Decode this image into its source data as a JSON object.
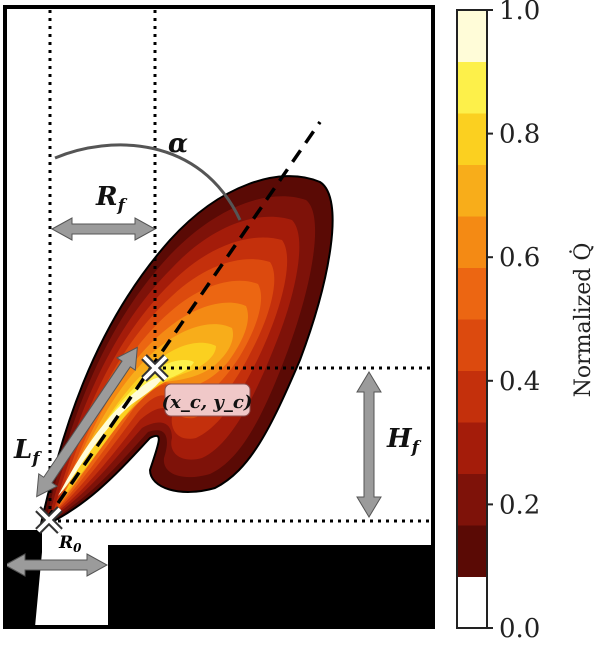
{
  "labels": {
    "alpha": "α",
    "rf_main": "R",
    "rf_sub": "f",
    "lf_main": "L",
    "lf_sub": "f",
    "hf_main": "H",
    "hf_sub": "f",
    "r0_main": "R",
    "r0_sub": "0",
    "xcyc": "(x_c, y_c)"
  },
  "colorbar": {
    "title": "Normalized Q̇",
    "ticks": [
      "1.0",
      "0.8",
      "0.6",
      "0.4",
      "0.2",
      "0.0"
    ],
    "colors": [
      "#ffffff",
      "#5a0a05",
      "#7e1209",
      "#a41c0a",
      "#c4300c",
      "#dc4a0e",
      "#ec6612",
      "#f48a14",
      "#f8ad1a",
      "#fbd020",
      "#fdf04a",
      "#fffcd8"
    ]
  },
  "colors": {
    "arrow_gray": "#9b9b9b",
    "marker_box": "#f0c8c8",
    "frame": "#000000"
  }
}
